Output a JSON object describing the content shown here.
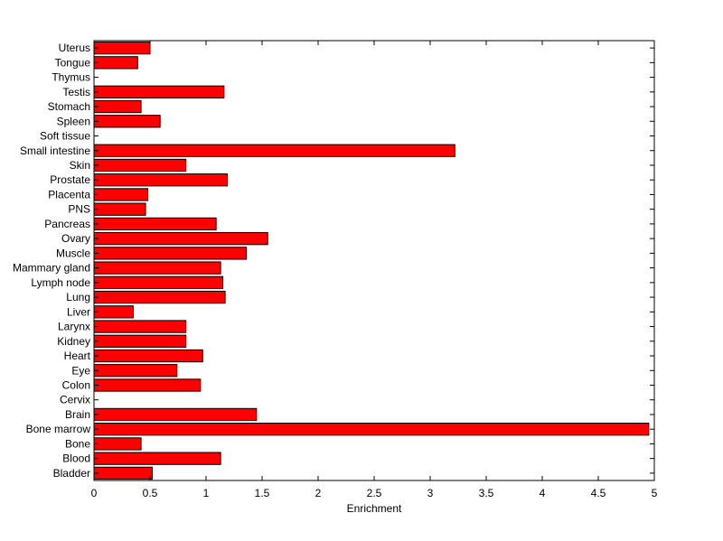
{
  "chart_data": {
    "type": "bar",
    "orientation": "horizontal",
    "title": "",
    "xlabel": "Enrichment",
    "ylabel": "",
    "xlim": [
      0,
      5
    ],
    "xticks": [
      "0",
      "0.5",
      "1",
      "1.5",
      "2",
      "2.5",
      "3",
      "3.5",
      "4",
      "4.5",
      "5"
    ],
    "grid": false,
    "bar_color": "#ff0000",
    "bar_edge_color": "#000000",
    "categories": [
      "Bladder",
      "Blood",
      "Bone",
      "Bone marrow",
      "Brain",
      "Cervix",
      "Colon",
      "Eye",
      "Heart",
      "Kidney",
      "Larynx",
      "Liver",
      "Lung",
      "Lymph node",
      "Mammary gland",
      "Muscle",
      "Ovary",
      "Pancreas",
      "PNS",
      "Placenta",
      "Prostate",
      "Skin",
      "Small intestine",
      "Soft tissue",
      "Spleen",
      "Stomach",
      "Testis",
      "Thymus",
      "Tongue",
      "Uterus"
    ],
    "values": [
      0.52,
      1.13,
      0.42,
      4.95,
      1.45,
      0,
      0.95,
      0.74,
      0.97,
      0.82,
      0.82,
      0.35,
      1.17,
      1.15,
      1.13,
      1.36,
      1.55,
      1.09,
      0.46,
      0.48,
      1.19,
      0.82,
      3.22,
      0,
      0.59,
      0.42,
      1.16,
      0,
      0.39,
      0.5
    ]
  }
}
